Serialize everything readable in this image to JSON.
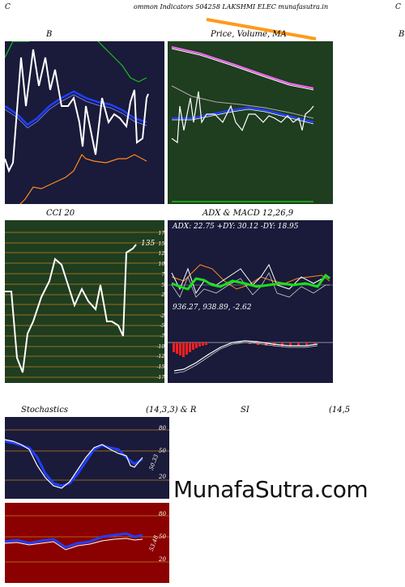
{
  "header": {
    "left_char": "C",
    "title": "ommon  Indicators 504258  LAKSHMI ELEC munafasutra.in",
    "right_char": "C"
  },
  "bb_panel": {
    "label": "B"
  },
  "price_panel": {
    "label": "Price,  Volume,  MA"
  },
  "right_edge_char": "B",
  "cci_panel": {
    "label": "CCI 20",
    "value_label": "135",
    "ticks": [
      "175",
      "150",
      "125",
      "100",
      "75",
      "50",
      "25",
      "0",
      "-25",
      "-50",
      "-75",
      "-100",
      "-125",
      "-150",
      "-175"
    ]
  },
  "adx_panel": {
    "label": "ADX  & MACD 12,26,9",
    "readout": "ADX: 22.75  +DY: 30.12  -DY: 18.95"
  },
  "macd_panel": {
    "readout": "936.27,  938.89,  -2.62"
  },
  "stoch_panel": {
    "label_left": "Stochastics",
    "label_mid": "(14,3,3) & R",
    "label_si": "SI",
    "label_right": "(14,5",
    "ticks": [
      "80",
      "50",
      "20"
    ],
    "value_label": "50.33"
  },
  "rsi_panel": {
    "ticks": [
      "80",
      "50",
      "20"
    ],
    "value_label": "53.48"
  },
  "watermark": "MunafaSutra.com",
  "colors": {
    "navy_bg": "#1a1a3a",
    "green_bg": "#1f3d1f",
    "dark_red_bg": "#8b0000",
    "white_line": "#ffffff",
    "blue_line": "#1f3fff",
    "green_line": "#19c019",
    "orange_line": "#ff8c1a"
  }
}
